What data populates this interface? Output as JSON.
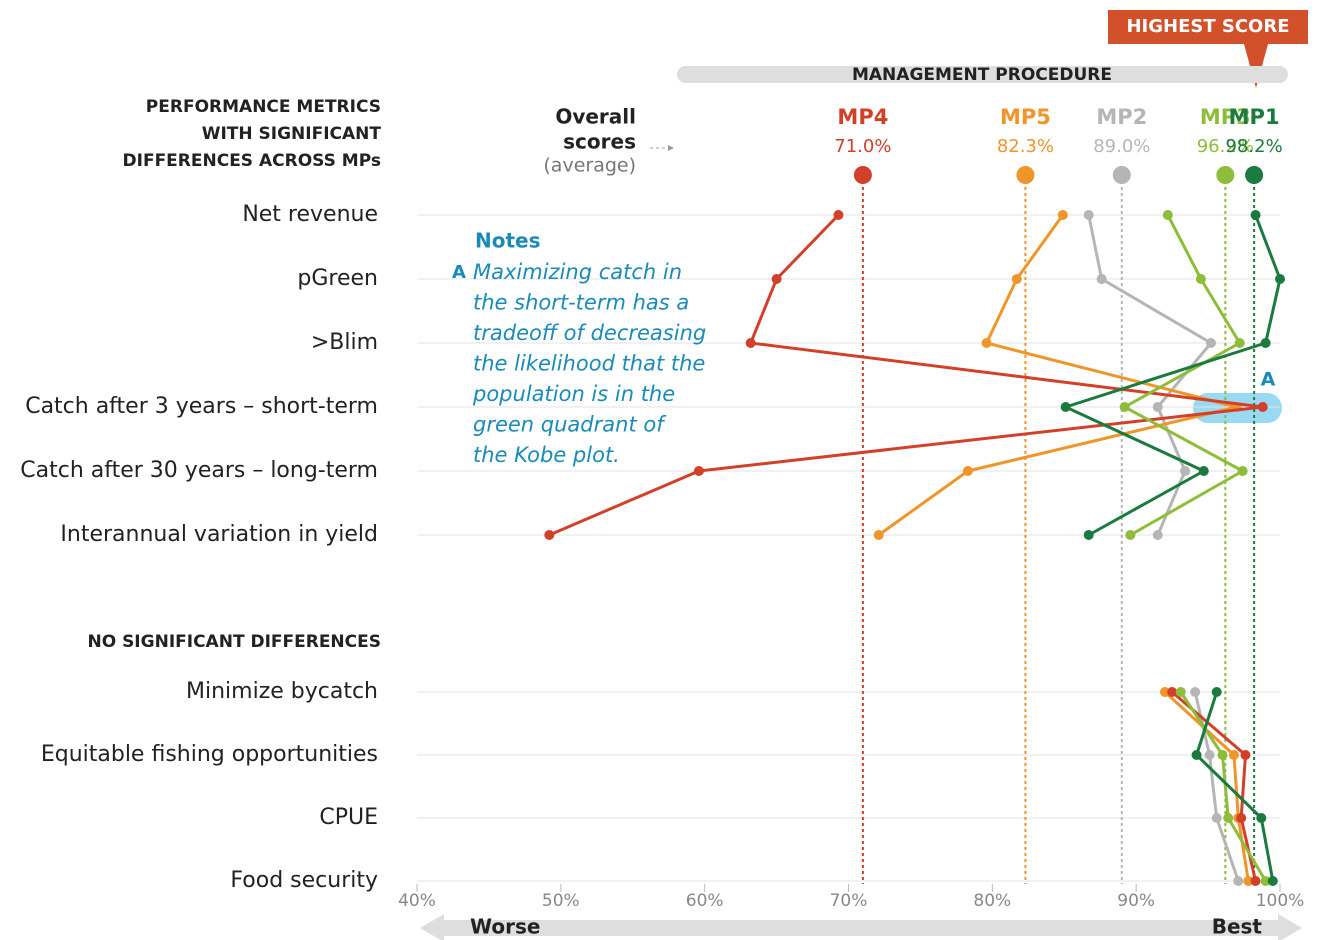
{
  "chart_data": {
    "type": "line",
    "orientation": "horizontal",
    "banner": "HIGHEST SCORE",
    "axis_header": "MANAGEMENT PROCEDURE",
    "score_heading": [
      "Overall",
      "scores"
    ],
    "score_subheading": "(average)",
    "sections": [
      {
        "title": [
          "PERFORMANCE METRICS",
          "WITH SIGNIFICANT",
          "DIFFERENCES ACROSS MPs"
        ],
        "count": 6
      },
      {
        "title": [
          "NO SIGNIFICANT DIFFERENCES"
        ],
        "count": 4
      }
    ],
    "categories": [
      "Net revenue",
      "pGreen",
      ">Blim",
      "Catch after 3 years – short-term",
      "Catch after 30 years – long-term",
      "Interannual variation in yield",
      "Minimize bycatch",
      "Equitable fishing opportunities",
      "CPUE",
      "Food security"
    ],
    "series": [
      {
        "name": "MP2",
        "color": "#b5b5b5",
        "score": 89.0,
        "score_label": "89.0%",
        "values": [
          86.7,
          87.6,
          95.2,
          91.5,
          93.4,
          91.5,
          94.1,
          95.1,
          95.6,
          97.1
        ]
      },
      {
        "name": "MP5",
        "color": "#f0952a",
        "score": 82.3,
        "score_label": "82.3%",
        "values": [
          84.9,
          81.7,
          79.6,
          97.0,
          78.3,
          72.1,
          92.0,
          96.8,
          97.1,
          97.8
        ]
      },
      {
        "name": "MP4",
        "color": "#d2402a",
        "score": 71.0,
        "score_label": "71.0%",
        "values": [
          69.3,
          65.0,
          63.2,
          98.8,
          59.6,
          49.2,
          92.5,
          97.6,
          97.3,
          98.3
        ]
      },
      {
        "name": "MP3",
        "color": "#8dbd3a",
        "score": 96.2,
        "score_label": "96.2%",
        "values": [
          92.2,
          94.5,
          97.2,
          89.2,
          97.4,
          89.6,
          93.1,
          96.0,
          96.4,
          99.0
        ]
      },
      {
        "name": "MP1",
        "color": "#1b7a3e",
        "score": 98.2,
        "score_label": "98.2%",
        "values": [
          98.3,
          100.0,
          99.0,
          85.1,
          94.7,
          86.7,
          95.6,
          94.2,
          98.7,
          99.5
        ]
      }
    ],
    "xlim": [
      40,
      100
    ],
    "xticks": [
      {
        "value": 40,
        "label": "40%"
      },
      {
        "value": 50,
        "label": "50%"
      },
      {
        "value": 60,
        "label": "60%"
      },
      {
        "value": 70,
        "label": "70%"
      },
      {
        "value": 80,
        "label": "80%"
      },
      {
        "value": 90,
        "label": "90%"
      },
      {
        "value": 100,
        "label": "100%"
      }
    ],
    "grid": true,
    "notes": {
      "title": "Notes",
      "marker": "A",
      "lines": [
        "Maximizing catch in",
        "the short-term has a",
        "tradeoff of decreasing",
        "the likelihood that the",
        "population is in the",
        "green quadrant of",
        "the Kobe plot."
      ]
    },
    "annotation": "A",
    "axis_ends": [
      "Worse",
      "Best"
    ]
  }
}
